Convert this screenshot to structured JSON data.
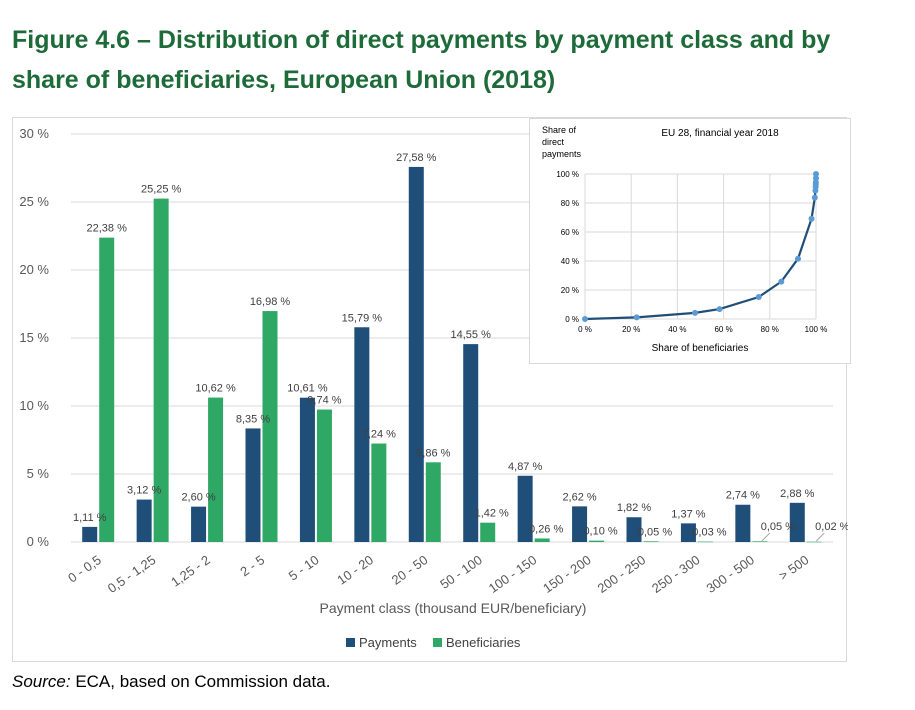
{
  "figure": {
    "title": "Figure 4.6 – Distribution of direct payments by payment class and by share of beneficiaries, European Union (2018)",
    "source_label": "Source:",
    "source_text": " ECA, based on Commission data."
  },
  "colors": {
    "payments": "#1f4e79",
    "beneficiaries": "#2fa866",
    "title": "#1e6b3a",
    "inset_line": "#1f4e79",
    "inset_marker": "#5b9bd5"
  },
  "chart_data": [
    {
      "type": "bar",
      "title": "",
      "xlabel": "Payment class (thousand EUR/beneficiary)",
      "ylabel": "",
      "ylim": [
        0,
        30
      ],
      "yticks": [
        "0 %",
        "5 %",
        "10 %",
        "15 %",
        "20 %",
        "25 %",
        "30 %"
      ],
      "ytick_values": [
        0,
        5,
        10,
        15,
        20,
        25,
        30
      ],
      "grid": true,
      "legend_position": "bottom",
      "categories": [
        "0 - 0,5",
        "0,5 - 1,25",
        "1,25 - 2",
        "2 - 5",
        "5 - 10",
        "10 - 20",
        "20 - 50",
        "50 - 100",
        "100 - 150",
        "150 - 200",
        "200 - 250",
        "250 - 300",
        "300 - 500",
        "> 500"
      ],
      "series": [
        {
          "name": "Payments",
          "values": [
            1.11,
            3.12,
            2.6,
            8.35,
            10.61,
            15.79,
            27.58,
            14.55,
            4.87,
            2.62,
            1.82,
            1.37,
            2.74,
            2.88
          ],
          "labels": [
            "1,11 %",
            "3,12 %",
            "2,60 %",
            "8,35 %",
            "10,61 %",
            "15,79 %",
            "27,58 %",
            "14,55 %",
            "4,87 %",
            "2,62 %",
            "1,82 %",
            "1,37 %",
            "2,74 %",
            "2,88 %"
          ]
        },
        {
          "name": "Beneficiaries",
          "values": [
            22.38,
            25.25,
            10.62,
            16.98,
            9.74,
            7.24,
            5.86,
            1.42,
            0.26,
            0.1,
            0.05,
            0.03,
            0.05,
            0.02
          ],
          "labels": [
            "22,38 %",
            "25,25 %",
            "10,62 %",
            "16,98 %",
            "9,74 %",
            "7,24 %",
            "5,86 %",
            "1,42 %",
            "0,26 %",
            "0,10 %",
            "0,05 %",
            "0,03 %",
            "0,05 %",
            "0,02 %"
          ]
        }
      ]
    },
    {
      "type": "line",
      "title": "EU 28, financial year 2018",
      "xlabel": "Share of beneficiaries",
      "ylabel_lines": [
        "Share of",
        "direct",
        "payments"
      ],
      "xlim": [
        0,
        100
      ],
      "ylim": [
        0,
        100
      ],
      "xticks": [
        "0 %",
        "20 %",
        "40 %",
        "60 %",
        "80 %",
        "100 %"
      ],
      "yticks": [
        "0 %",
        "20 %",
        "40 %",
        "60 %",
        "80 %",
        "100 %"
      ],
      "tick_values": [
        0,
        20,
        40,
        60,
        80,
        100
      ],
      "grid": true,
      "points": {
        "x": [
          0,
          22.38,
          47.63,
          58.25,
          75.23,
          84.97,
          92.21,
          98.07,
          99.49,
          99.75,
          99.85,
          99.9,
          99.93,
          99.98,
          100
        ],
        "y": [
          0,
          1.11,
          4.23,
          6.83,
          15.18,
          25.79,
          41.58,
          69.16,
          83.71,
          88.58,
          91.2,
          93.02,
          94.39,
          97.13,
          100
        ]
      }
    }
  ]
}
